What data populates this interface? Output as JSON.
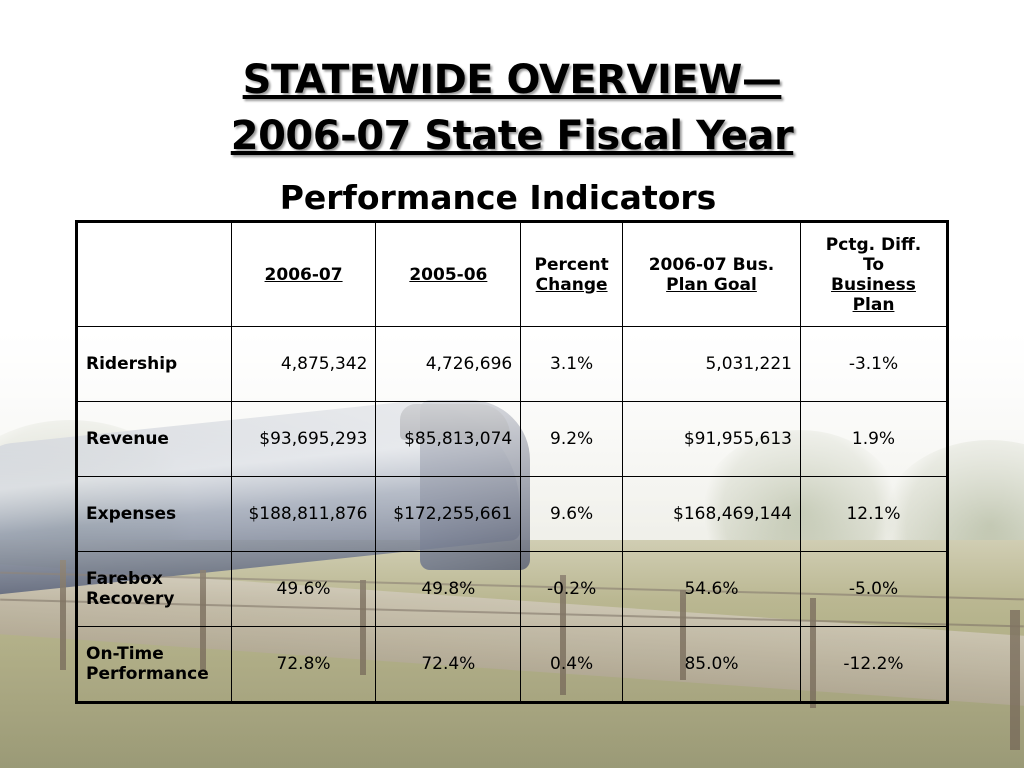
{
  "slide": {
    "title_line1": "STATEWIDE OVERVIEW—",
    "title_line2": "2006-07 State Fiscal Year",
    "subtitle": "Performance Indicators"
  },
  "table": {
    "headers": [
      {
        "line1": "",
        "line2": "",
        "line3": "",
        "line4": ""
      },
      {
        "line1": "2006-07",
        "line2": "",
        "line3": "",
        "line4": ""
      },
      {
        "line1": "2005-06",
        "line2": "",
        "line3": "",
        "line4": ""
      },
      {
        "line1": "Percent",
        "line2": "Change",
        "line3": "",
        "line4": ""
      },
      {
        "line1": "2006-07 Bus.",
        "line2": "Plan Goal",
        "line3": "",
        "line4": ""
      },
      {
        "line1": "Pctg. Diff.",
        "line2": "To",
        "line3": "Business",
        "line4": "Plan"
      }
    ],
    "rows": [
      {
        "label": "Ridership",
        "v2006": "4,875,342",
        "v2005": "4,726,696",
        "pct": "3.1%",
        "goal": "5,031,221",
        "diff": "-3.1%"
      },
      {
        "label": "Revenue",
        "v2006": "$93,695,293",
        "v2005": "$85,813,074",
        "pct": "9.2%",
        "goal": "$91,955,613",
        "diff": "1.9%"
      },
      {
        "label": "Expenses",
        "v2006": "$188,811,876",
        "v2005": "$172,255,661",
        "pct": "9.6%",
        "goal": "$168,469,144",
        "diff": "12.1%"
      },
      {
        "label_line1": "Farebox",
        "label_line2": "Recovery",
        "v2006": "49.6%",
        "v2005": "49.8%",
        "pct": "-0.2%",
        "goal": "54.6%",
        "diff": "-5.0%"
      },
      {
        "label_line1": "On-Time",
        "label_line2": "Performance",
        "v2006": "72.8%",
        "v2005": "72.4%",
        "pct": "0.4%",
        "goal": "85.0%",
        "diff": "-12.2%"
      }
    ]
  }
}
